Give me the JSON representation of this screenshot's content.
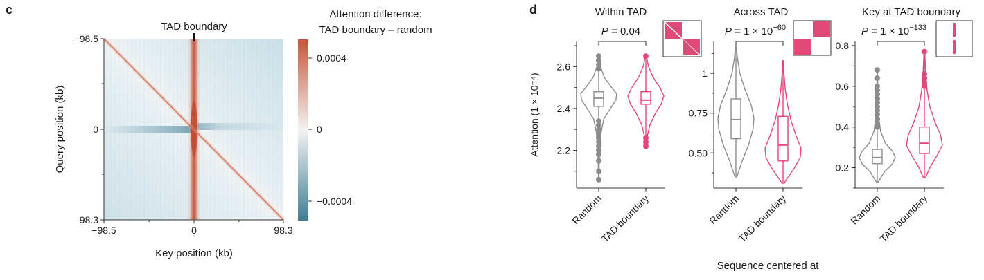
{
  "panel_c": {
    "letter": "c",
    "marker_label": "TAD boundary",
    "cbar_title_line1": "Attention difference:",
    "cbar_title_line2": "TAD boundary – random",
    "colors": {
      "positive": "#c8553a",
      "negative": "#3f7d94",
      "neutral": "#f2f3f3"
    }
  },
  "panel_d": {
    "letter": "d",
    "ylabel": "Attention (1 × 10⁻⁴)",
    "shared_xlabel": "Sequence centered at",
    "colors": {
      "random": "#8c8c8c",
      "tad_boundary": "#e5457a",
      "inset_fill": "#e04a78"
    }
  },
  "chart_data": [
    {
      "type": "heatmap",
      "xlabel": "Key position (kb)",
      "ylabel": "Query position (kb)",
      "xticks": [
        "−98.5",
        "0",
        "98.3"
      ],
      "yticks": [
        "−98.5",
        "0",
        "98.3"
      ],
      "xlim": [
        -98.5,
        98.3
      ],
      "ylim": [
        -98.5,
        98.3
      ],
      "colorbar": {
        "title": "Attention difference: TAD boundary – random",
        "ticks": [
          0.0004,
          0,
          -0.0004
        ],
        "tick_labels": [
          "0.0004",
          "0",
          "−0.0004"
        ],
        "range": [
          -0.0005,
          0.0005
        ]
      }
    },
    {
      "type": "violin",
      "title": "Within TAD",
      "pvalue": "P = 0.04",
      "categories": [
        "Random",
        "TAD boundary"
      ],
      "ylim": [
        2.02,
        2.72
      ],
      "yticks": [
        2.2,
        2.4,
        2.6
      ],
      "ytick_labels": [
        "2.2",
        "2.4",
        "2.6"
      ],
      "series": [
        {
          "name": "Random",
          "min": 2.06,
          "q1": 2.41,
          "median": 2.45,
          "q3": 2.48,
          "max": 2.65,
          "density": [
            [
              2.06,
              0.01
            ],
            [
              2.12,
              0.02
            ],
            [
              2.2,
              0.05
            ],
            [
              2.28,
              0.12
            ],
            [
              2.35,
              0.28
            ],
            [
              2.4,
              0.65
            ],
            [
              2.44,
              0.95
            ],
            [
              2.47,
              1.0
            ],
            [
              2.5,
              0.72
            ],
            [
              2.55,
              0.3
            ],
            [
              2.6,
              0.1
            ],
            [
              2.65,
              0.02
            ]
          ],
          "outliers": [
            2.06,
            2.1,
            2.15,
            2.18,
            2.2,
            2.22,
            2.24,
            2.26,
            2.28,
            2.3,
            2.32,
            2.34,
            2.59,
            2.61,
            2.63,
            2.65
          ]
        },
        {
          "name": "TAD boundary",
          "min": 2.22,
          "q1": 2.42,
          "median": 2.44,
          "q3": 2.48,
          "max": 2.65,
          "density": [
            [
              2.22,
              0.02
            ],
            [
              2.26,
              0.06
            ],
            [
              2.32,
              0.22
            ],
            [
              2.38,
              0.55
            ],
            [
              2.42,
              0.85
            ],
            [
              2.46,
              1.0
            ],
            [
              2.5,
              0.78
            ],
            [
              2.55,
              0.4
            ],
            [
              2.6,
              0.15
            ],
            [
              2.65,
              0.03
            ]
          ],
          "outliers": [
            2.22,
            2.24,
            2.26,
            2.65
          ]
        }
      ]
    },
    {
      "type": "violin",
      "title": "Across TAD",
      "pvalue": "P = 1 × 10",
      "pvalue_exponent": "−60",
      "categories": [
        "Random",
        "TAD boundary"
      ],
      "ylim": [
        0.28,
        1.2
      ],
      "yticks": [
        0.5,
        0.75,
        1
      ],
      "ytick_labels": [
        "0.50",
        "0.75",
        "1"
      ],
      "series": [
        {
          "name": "Random",
          "min": 0.35,
          "q1": 0.59,
          "median": 0.71,
          "q3": 0.84,
          "max": 1.17,
          "density": [
            [
              0.35,
              0.05
            ],
            [
              0.45,
              0.35
            ],
            [
              0.55,
              0.7
            ],
            [
              0.65,
              0.95
            ],
            [
              0.72,
              1.0
            ],
            [
              0.8,
              0.85
            ],
            [
              0.9,
              0.5
            ],
            [
              1.0,
              0.22
            ],
            [
              1.1,
              0.08
            ],
            [
              1.17,
              0.02
            ]
          ],
          "outliers": []
        },
        {
          "name": "TAD boundary",
          "min": 0.31,
          "q1": 0.45,
          "median": 0.55,
          "q3": 0.73,
          "max": 1.08,
          "density": [
            [
              0.31,
              0.05
            ],
            [
              0.4,
              0.6
            ],
            [
              0.47,
              0.95
            ],
            [
              0.53,
              1.0
            ],
            [
              0.6,
              0.75
            ],
            [
              0.7,
              0.45
            ],
            [
              0.8,
              0.25
            ],
            [
              0.9,
              0.12
            ],
            [
              1.0,
              0.05
            ],
            [
              1.08,
              0.01
            ]
          ],
          "outliers": []
        }
      ]
    },
    {
      "type": "violin",
      "title": "Key at TAD boundary",
      "pvalue": "P = 1 × 10",
      "pvalue_exponent": "−133",
      "categories": [
        "Random",
        "TAD boundary"
      ],
      "ylim": [
        0.1,
        0.82
      ],
      "yticks": [
        0.2,
        0.4,
        0.6,
        0.8
      ],
      "ytick_labels": [
        "0.2",
        "0.4",
        "0.6",
        "0.8"
      ],
      "series": [
        {
          "name": "Random",
          "min": 0.13,
          "q1": 0.22,
          "median": 0.25,
          "q3": 0.29,
          "max": 0.68,
          "density": [
            [
              0.13,
              0.05
            ],
            [
              0.18,
              0.4
            ],
            [
              0.22,
              0.85
            ],
            [
              0.25,
              1.0
            ],
            [
              0.28,
              0.85
            ],
            [
              0.32,
              0.45
            ],
            [
              0.38,
              0.18
            ],
            [
              0.45,
              0.08
            ],
            [
              0.55,
              0.03
            ],
            [
              0.68,
              0.01
            ]
          ],
          "outliers": [
            0.4,
            0.42,
            0.44,
            0.46,
            0.48,
            0.5,
            0.52,
            0.54,
            0.56,
            0.58,
            0.6,
            0.64,
            0.68
          ]
        },
        {
          "name": "TAD boundary",
          "min": 0.15,
          "q1": 0.27,
          "median": 0.32,
          "q3": 0.4,
          "max": 0.77,
          "density": [
            [
              0.15,
              0.05
            ],
            [
              0.2,
              0.3
            ],
            [
              0.26,
              0.7
            ],
            [
              0.31,
              1.0
            ],
            [
              0.36,
              0.9
            ],
            [
              0.42,
              0.6
            ],
            [
              0.5,
              0.3
            ],
            [
              0.58,
              0.15
            ],
            [
              0.65,
              0.08
            ],
            [
              0.77,
              0.02
            ]
          ],
          "outliers": [
            0.6,
            0.62,
            0.64,
            0.66,
            0.77
          ]
        }
      ]
    }
  ]
}
